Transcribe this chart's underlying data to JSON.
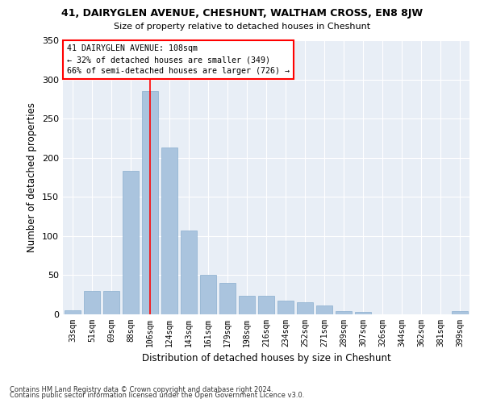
{
  "title": "41, DAIRYGLEN AVENUE, CHESHUNT, WALTHAM CROSS, EN8 8JW",
  "subtitle": "Size of property relative to detached houses in Cheshunt",
  "xlabel": "Distribution of detached houses by size in Cheshunt",
  "ylabel": "Number of detached properties",
  "categories": [
    "33sqm",
    "51sqm",
    "69sqm",
    "88sqm",
    "106sqm",
    "124sqm",
    "143sqm",
    "161sqm",
    "179sqm",
    "198sqm",
    "216sqm",
    "234sqm",
    "252sqm",
    "271sqm",
    "289sqm",
    "307sqm",
    "326sqm",
    "344sqm",
    "362sqm",
    "381sqm",
    "399sqm"
  ],
  "values": [
    5,
    30,
    30,
    183,
    285,
    213,
    107,
    50,
    40,
    24,
    24,
    18,
    15,
    11,
    4,
    3,
    0,
    0,
    0,
    0,
    4
  ],
  "bar_color": "#aac4de",
  "bar_edgecolor": "#8aaece",
  "background_color": "#e8eef6",
  "grid_color": "#ffffff",
  "red_line_x": 4.0,
  "annotation_text": "41 DAIRYGLEN AVENUE: 108sqm\n← 32% of detached houses are smaller (349)\n66% of semi-detached houses are larger (726) →",
  "footer1": "Contains HM Land Registry data © Crown copyright and database right 2024.",
  "footer2": "Contains public sector information licensed under the Open Government Licence v3.0.",
  "ylim": [
    0,
    350
  ],
  "yticks": [
    0,
    50,
    100,
    150,
    200,
    250,
    300,
    350
  ],
  "fig_width": 6.0,
  "fig_height": 5.0,
  "dpi": 100
}
